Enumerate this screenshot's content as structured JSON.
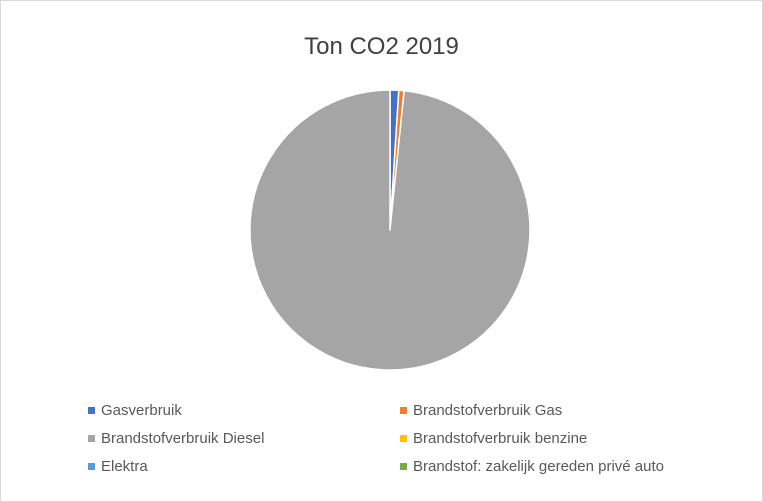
{
  "chart_data": {
    "type": "pie",
    "title": "Ton CO2 2019",
    "categories": [
      "Gasverbruik",
      "Brandstofverbruik Gas",
      "Brandstofverbruik Diesel",
      "Brandstofverbruik benzine",
      "Elektra",
      "Brandstof: zakelijk gereden privé auto"
    ],
    "values": [
      1.0,
      0.6,
      97.8,
      0.0,
      0.0,
      0.0
    ],
    "colors": [
      "#4472C4",
      "#ED7D31",
      "#A5A5A5",
      "#FFC000",
      "#5B9BD5",
      "#70AD47"
    ],
    "legend": "bottom",
    "start_angle_deg": 0,
    "direction": "clockwise"
  }
}
